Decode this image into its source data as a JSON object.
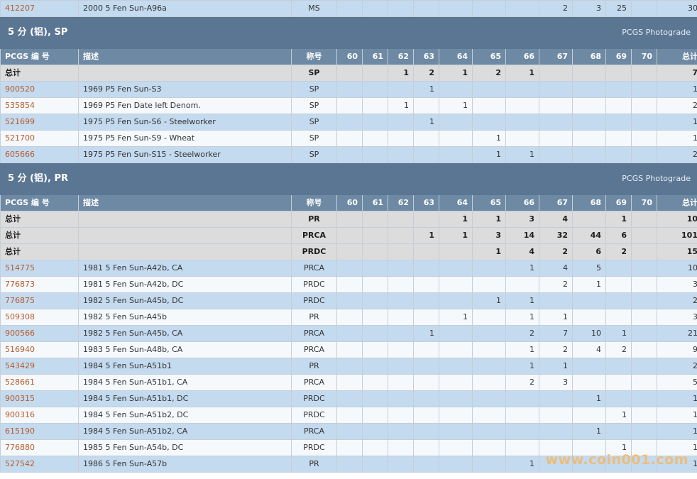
{
  "grades": [
    "60",
    "61",
    "62",
    "63",
    "64",
    "65",
    "66",
    "67",
    "68",
    "69",
    "70"
  ],
  "columns": {
    "number": "PCGS 编 号",
    "description": "描述",
    "designation": "称号",
    "total": "总计"
  },
  "total_label": "总计",
  "photograde": "PCGS Photograde",
  "top_row": {
    "number": "412207",
    "desc": "2000 5 Fen Sun-A96a",
    "des": "MS",
    "g": [
      "",
      "",
      "",
      "",
      "",
      "",
      "",
      "2",
      "3",
      "25",
      ""
    ],
    "total": "30"
  },
  "sections": [
    {
      "title": "5 分 (铝), SP",
      "totals": [
        {
          "des": "SP",
          "g": [
            "",
            "",
            "1",
            "2",
            "1",
            "2",
            "1",
            "",
            "",
            "",
            ""
          ],
          "total": "7"
        }
      ],
      "rows": [
        {
          "number": "900520",
          "desc": "1969 P5 Fen Sun-S3",
          "des": "SP",
          "g": [
            "",
            "",
            "",
            "1",
            "",
            "",
            "",
            "",
            "",
            "",
            ""
          ],
          "total": "1"
        },
        {
          "number": "535854",
          "desc": "1969 P5 Fen Date left Denom.",
          "des": "SP",
          "g": [
            "",
            "",
            "1",
            "",
            "1",
            "",
            "",
            "",
            "",
            "",
            ""
          ],
          "total": "2"
        },
        {
          "number": "521699",
          "desc": "1975 P5 Fen Sun-S6 - Steelworker",
          "des": "SP",
          "g": [
            "",
            "",
            "",
            "1",
            "",
            "",
            "",
            "",
            "",
            "",
            ""
          ],
          "total": "1"
        },
        {
          "number": "521700",
          "desc": "1975 P5 Fen Sun-S9 - Wheat",
          "des": "SP",
          "g": [
            "",
            "",
            "",
            "",
            "",
            "1",
            "",
            "",
            "",
            "",
            ""
          ],
          "total": "1"
        },
        {
          "number": "605666",
          "desc": "1975 P5 Fen Sun-S15 - Steelworker",
          "des": "SP",
          "g": [
            "",
            "",
            "",
            "",
            "",
            "1",
            "1",
            "",
            "",
            "",
            ""
          ],
          "total": "2"
        }
      ]
    },
    {
      "title": "5 分 (铝), PR",
      "totals": [
        {
          "des": "PR",
          "g": [
            "",
            "",
            "",
            "",
            "1",
            "1",
            "3",
            "4",
            "",
            "1",
            ""
          ],
          "total": "10"
        },
        {
          "des": "PRCA",
          "g": [
            "",
            "",
            "",
            "1",
            "1",
            "3",
            "14",
            "32",
            "44",
            "6",
            ""
          ],
          "total": "101"
        },
        {
          "des": "PRDC",
          "g": [
            "",
            "",
            "",
            "",
            "",
            "1",
            "4",
            "2",
            "6",
            "2",
            ""
          ],
          "total": "15"
        }
      ],
      "rows": [
        {
          "number": "514775",
          "desc": "1981 5 Fen Sun-A42b, CA",
          "des": "PRCA",
          "g": [
            "",
            "",
            "",
            "",
            "",
            "",
            "1",
            "4",
            "5",
            "",
            ""
          ],
          "total": "10"
        },
        {
          "number": "776873",
          "desc": "1981 5 Fen Sun-A42b, DC",
          "des": "PRDC",
          "g": [
            "",
            "",
            "",
            "",
            "",
            "",
            "",
            "2",
            "1",
            "",
            ""
          ],
          "total": "3"
        },
        {
          "number": "776875",
          "desc": "1982 5 Fen Sun-A45b, DC",
          "des": "PRDC",
          "g": [
            "",
            "",
            "",
            "",
            "",
            "1",
            "1",
            "",
            "",
            "",
            ""
          ],
          "total": "2"
        },
        {
          "number": "509308",
          "desc": "1982 5 Fen Sun-A45b",
          "des": "PR",
          "g": [
            "",
            "",
            "",
            "",
            "1",
            "",
            "1",
            "1",
            "",
            "",
            ""
          ],
          "total": "3"
        },
        {
          "number": "900566",
          "desc": "1982 5 Fen Sun-A45b, CA",
          "des": "PRCA",
          "g": [
            "",
            "",
            "",
            "1",
            "",
            "",
            "2",
            "7",
            "10",
            "1",
            ""
          ],
          "total": "21"
        },
        {
          "number": "516940",
          "desc": "1983 5 Fen Sun-A48b, CA",
          "des": "PRCA",
          "g": [
            "",
            "",
            "",
            "",
            "",
            "",
            "1",
            "2",
            "4",
            "2",
            ""
          ],
          "total": "9"
        },
        {
          "number": "543429",
          "desc": "1984 5 Fen Sun-A51b1",
          "des": "PR",
          "g": [
            "",
            "",
            "",
            "",
            "",
            "",
            "1",
            "1",
            "",
            "",
            ""
          ],
          "total": "2"
        },
        {
          "number": "528661",
          "desc": "1984 5 Fen Sun-A51b1, CA",
          "des": "PRCA",
          "g": [
            "",
            "",
            "",
            "",
            "",
            "",
            "2",
            "3",
            "",
            "",
            ""
          ],
          "total": "5"
        },
        {
          "number": "900315",
          "desc": "1984 5 Fen Sun-A51b1, DC",
          "des": "PRDC",
          "g": [
            "",
            "",
            "",
            "",
            "",
            "",
            "",
            "",
            "1",
            "",
            ""
          ],
          "total": "1"
        },
        {
          "number": "900316",
          "desc": "1984 5 Fen Sun-A51b2, DC",
          "des": "PRDC",
          "g": [
            "",
            "",
            "",
            "",
            "",
            "",
            "",
            "",
            "",
            "1",
            ""
          ],
          "total": "1"
        },
        {
          "number": "615190",
          "desc": "1984 5 Fen Sun-A51b2, CA",
          "des": "PRCA",
          "g": [
            "",
            "",
            "",
            "",
            "",
            "",
            "",
            "",
            "1",
            "",
            ""
          ],
          "total": "1"
        },
        {
          "number": "776880",
          "desc": "1985 5 Fen Sun-A54b, DC",
          "des": "PRDC",
          "g": [
            "",
            "",
            "",
            "",
            "",
            "",
            "",
            "",
            "",
            "1",
            ""
          ],
          "total": "1"
        },
        {
          "number": "527542",
          "desc": "1986 5 Fen Sun-A57b",
          "des": "PR",
          "g": [
            "",
            "",
            "",
            "",
            "",
            "",
            "1",
            "",
            "",
            "",
            ""
          ],
          "total": "1"
        }
      ]
    }
  ],
  "watermark": "www.coin001.com",
  "colors": {
    "section_bg": "#5b7693",
    "header_bg": "#6e89a3",
    "row_blue": "#c4daef",
    "total_bg": "#dcdcdc",
    "link": "#b65a2a",
    "watermark": "#f2b86a"
  }
}
